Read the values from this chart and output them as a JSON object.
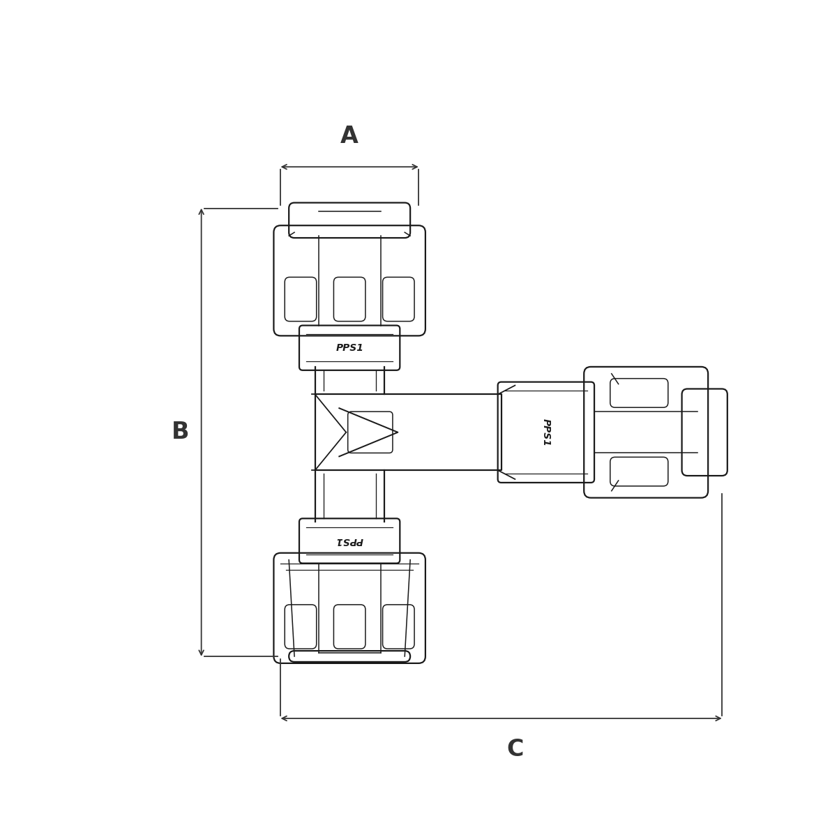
{
  "bg_color": "#ffffff",
  "line_color": "#1a1a1a",
  "dim_color": "#333333",
  "fig_width": 12.0,
  "fig_height": 12.0,
  "dpi": 100,
  "label_A": "A",
  "label_B": "B",
  "label_C": "C",
  "label_fontsize": 24,
  "pps1_text": "PPS1",
  "lw_main": 1.6,
  "lw_inner": 1.1,
  "lw_dim": 1.3
}
